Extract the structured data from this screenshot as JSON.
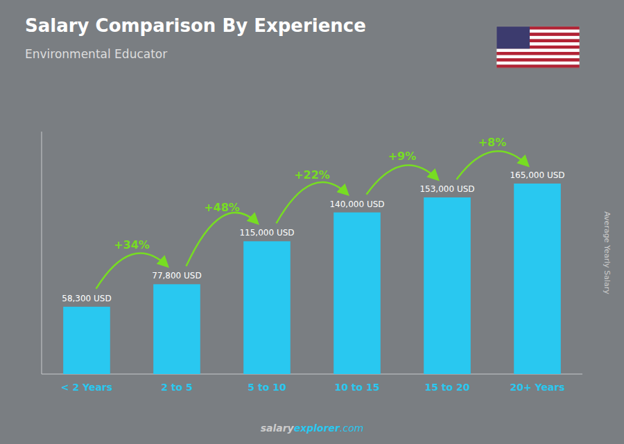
{
  "chart_data": {
    "type": "bar",
    "title": "Salary Comparison By Experience",
    "subtitle": "Environmental Educator",
    "y_label": "Average Yearly Salary",
    "categories": [
      "< 2 Years",
      "2 to 5",
      "5 to 10",
      "10 to 15",
      "15 to 20",
      "20+ Years"
    ],
    "values": [
      58300,
      77800,
      115000,
      140000,
      153000,
      165000
    ],
    "value_labels": [
      "58,300 USD",
      "77,800 USD",
      "115,000 USD",
      "140,000 USD",
      "153,000 USD",
      "165,000 USD"
    ],
    "data_labels": true,
    "annotations": [
      "+34%",
      "+48%",
      "+22%",
      "+9%",
      "+8%"
    ],
    "watermark": [
      "salary",
      "explorer",
      ".com"
    ],
    "color": "#29C8F0",
    "ylim": [
      0,
      210000
    ],
    "tick_labels": "x",
    "grid": false
  }
}
